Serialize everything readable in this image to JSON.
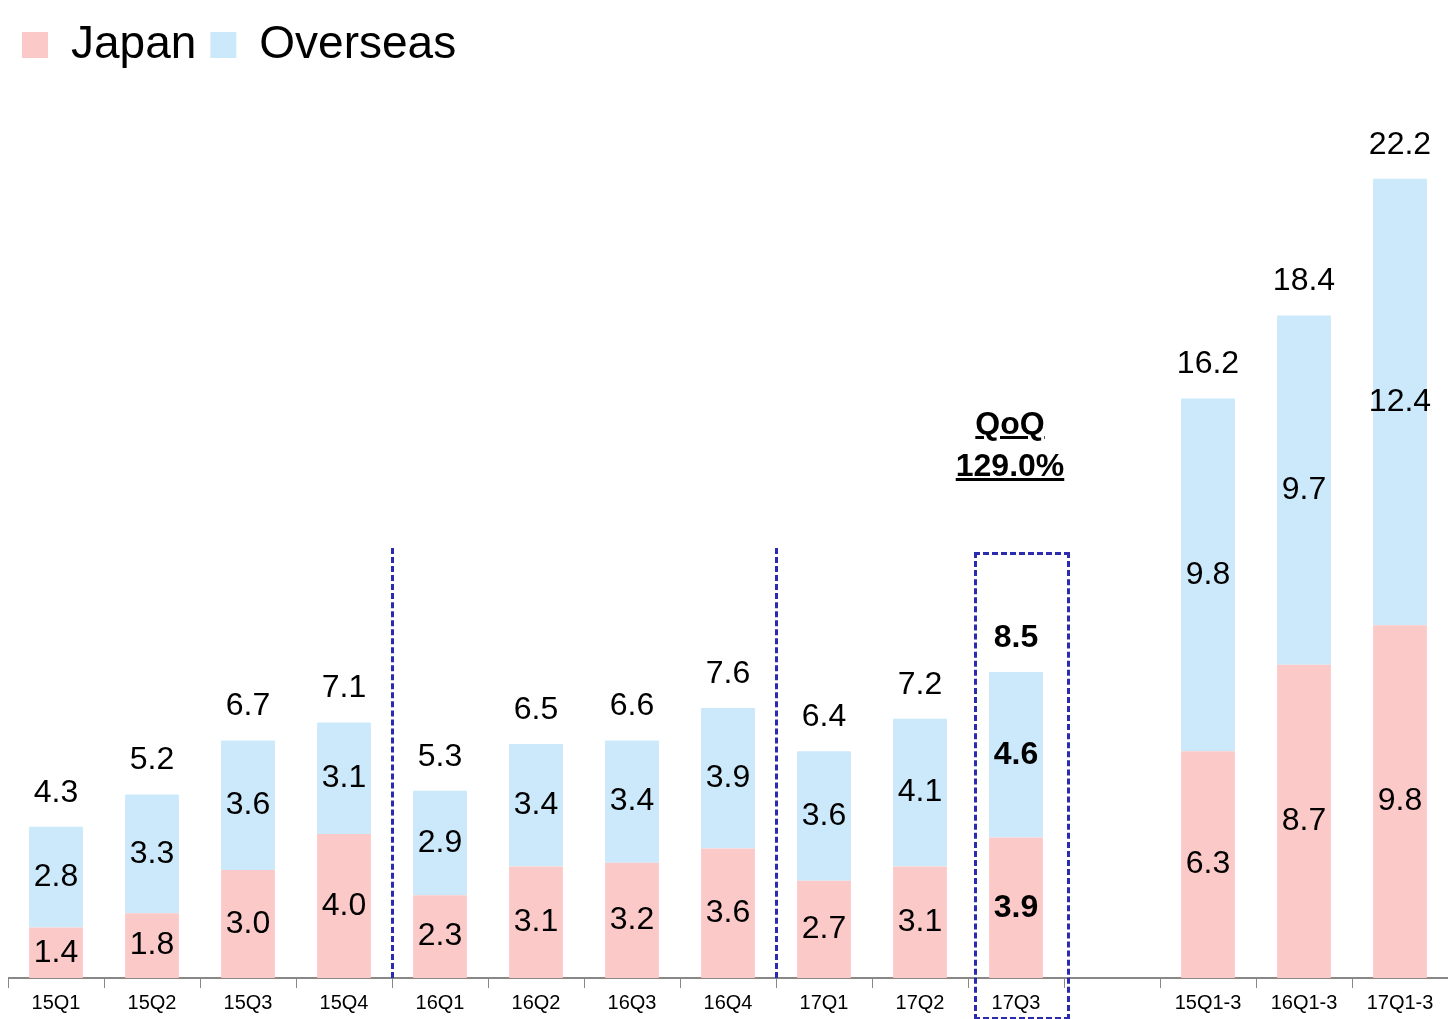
{
  "chart_data": {
    "type": "bar",
    "stacked": true,
    "legend": "top left",
    "grid": false,
    "categories": [
      "15Q1",
      "15Q2",
      "15Q3",
      "15Q4",
      "16Q1",
      "16Q2",
      "16Q3",
      "16Q4",
      "17Q1",
      "17Q2",
      "17Q3",
      null,
      "15Q1-3",
      "16Q1-3",
      "17Q1-3"
    ],
    "series": [
      {
        "name": "Japan",
        "color": "#fcc9c9",
        "values": [
          1.4,
          1.8,
          3.0,
          4.0,
          2.3,
          3.1,
          3.2,
          3.6,
          2.7,
          3.1,
          3.9,
          null,
          6.3,
          8.7,
          9.8
        ],
        "value_labels": [
          "1.4",
          "1.8",
          "3.0",
          "4.0",
          "2.3",
          "3.1",
          "3.2",
          "3.6",
          "2.7",
          "3.1",
          "3.9",
          null,
          "6.3",
          "8.7",
          "9.8"
        ]
      },
      {
        "name": "Overseas",
        "color": "#cce9fb",
        "values": [
          2.8,
          3.3,
          3.6,
          3.1,
          2.9,
          3.4,
          3.4,
          3.9,
          3.6,
          4.1,
          4.6,
          null,
          9.8,
          9.7,
          12.4
        ],
        "value_labels": [
          "2.8",
          "3.3",
          "3.6",
          "3.1",
          "2.9",
          "3.4",
          "3.4",
          "3.9",
          "3.6",
          "4.1",
          "4.6",
          null,
          "9.8",
          "9.7",
          "12.4"
        ]
      }
    ],
    "totals": [
      "4.3",
      "5.2",
      "6.7",
      "7.1",
      "5.3",
      "6.5",
      "6.6",
      "7.6",
      "6.4",
      "7.2",
      "8.5",
      null,
      "16.2",
      "18.4",
      "22.2"
    ],
    "annotations": [
      "QoQ",
      "129.0%"
    ]
  }
}
